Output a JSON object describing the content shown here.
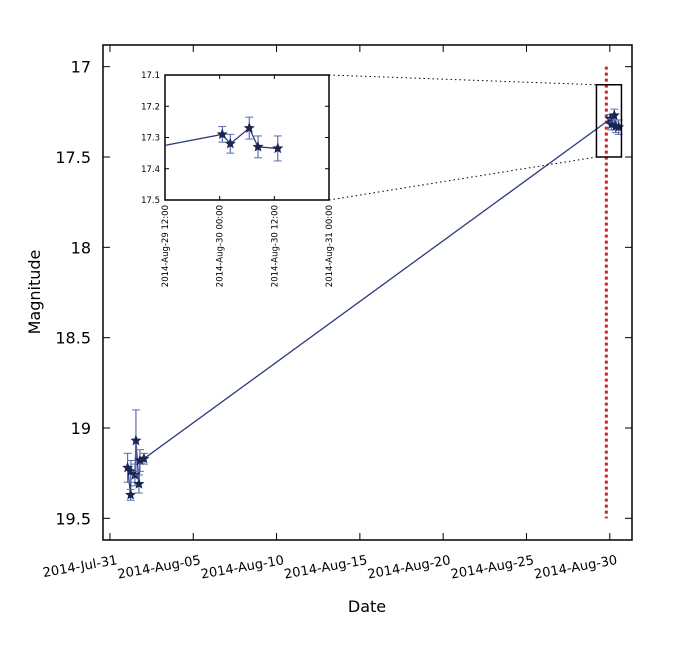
{
  "chart_data": {
    "type": "scatter",
    "xlabel": "Date",
    "ylabel": "Magnitude",
    "y_inverted": true,
    "grid": false,
    "ylim": [
      19.62,
      16.88
    ],
    "xlim": [
      "2014-07-30T14:00",
      "2014-08-31T08:00"
    ],
    "yticks": [
      17,
      17.5,
      18,
      18.5,
      19,
      19.5
    ],
    "ytick_labels": [
      "17",
      "17.5",
      "18",
      "18.5",
      "19",
      "19.5"
    ],
    "xticks": [
      "2014-07-31",
      "2014-08-05",
      "2014-08-10",
      "2014-08-15",
      "2014-08-20",
      "2014-08-25",
      "2014-08-30"
    ],
    "xtick_labels": [
      "2014-Jul-31",
      "2014-Aug-05",
      "2014-Aug-10",
      "2014-Aug-15",
      "2014-Aug-20",
      "2014-Aug-25",
      "2014-Aug-30"
    ],
    "series_color": "#2b3a7a",
    "errorbar_color": "#5a6fb0",
    "marker": "star",
    "points": [
      {
        "date": "2014-08-01T01:26",
        "mag": 19.22,
        "err": 0.08
      },
      {
        "date": "2014-08-01T05:45",
        "mag": 19.37,
        "err": 0.03
      },
      {
        "date": "2014-08-01T06:14",
        "mag": 19.24,
        "err": 0.06
      },
      {
        "date": "2014-08-01T12:00",
        "mag": 19.26,
        "err": 0.06
      },
      {
        "date": "2014-08-01T13:26",
        "mag": 19.07,
        "err": 0.17
      },
      {
        "date": "2014-08-01T17:45",
        "mag": 19.31,
        "err": 0.05
      },
      {
        "date": "2014-08-01T19:12",
        "mag": 19.18,
        "err": 0.06
      },
      {
        "date": "2014-08-02T01:00",
        "mag": 19.17,
        "err": 0.03
      },
      {
        "date": "2014-08-30T00:35",
        "mag": 17.29,
        "err": 0.025
      },
      {
        "date": "2014-08-30T02:20",
        "mag": 17.32,
        "err": 0.03
      },
      {
        "date": "2014-08-30T06:30",
        "mag": 17.27,
        "err": 0.035
      },
      {
        "date": "2014-08-30T08:25",
        "mag": 17.33,
        "err": 0.035
      },
      {
        "date": "2014-08-30T12:45",
        "mag": 17.335,
        "err": 0.04
      }
    ],
    "vertical_marker": {
      "date": "2014-08-29T19:00",
      "mag_range": [
        17.0,
        19.5
      ],
      "color": "#cc2222",
      "style": "dotted"
    },
    "inset": {
      "xlim": [
        "2014-08-29T12:00",
        "2014-08-31T00:00"
      ],
      "ylim": [
        17.5,
        17.1
      ],
      "xticks": [
        "2014-08-29T12:00",
        "2014-08-30T00:00",
        "2014-08-30T12:00",
        "2014-08-31T00:00"
      ],
      "xtick_labels": [
        "2014-Aug-29 12:00",
        "2014-Aug-30 00:00",
        "2014-Aug-30 12:00",
        "2014-Aug-31 00:00"
      ],
      "yticks": [
        17.1,
        17.2,
        17.3,
        17.4,
        17.5
      ],
      "ytick_labels": [
        "17.1",
        "17.2",
        "17.3",
        "17.4",
        "17.5"
      ]
    }
  }
}
